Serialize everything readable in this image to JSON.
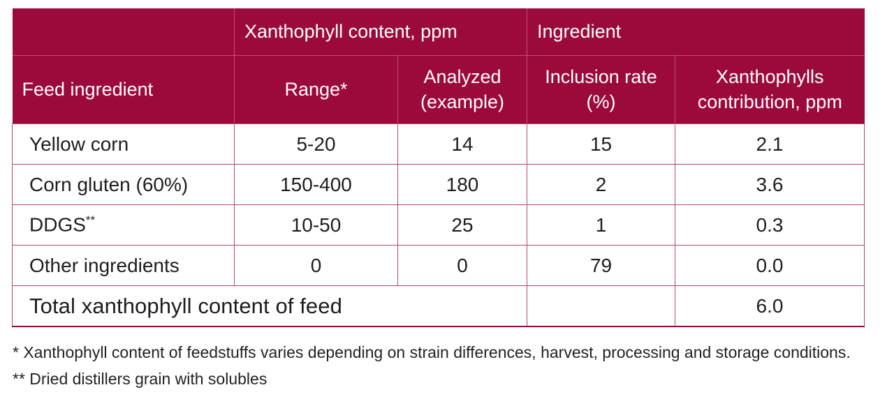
{
  "header": {
    "group_xanthophyll": "Xanthophyll content, ppm",
    "group_ingredient": "Ingredient",
    "col_feed_ingredient": "Feed ingredient",
    "col_range": "Range*",
    "col_analyzed_line1": "Analyzed",
    "col_analyzed_line2": "(example)",
    "col_inclusion_line1": "Inclusion rate",
    "col_inclusion_line2": "(%)",
    "col_contribution_line1": "Xanthophylls",
    "col_contribution_line2": "contribution, ppm"
  },
  "rows": [
    {
      "name": "Yellow corn",
      "range": "5-20",
      "analyzed": "14",
      "inclusion": "15",
      "contribution": "2.1"
    },
    {
      "name": "Corn gluten (60%)",
      "range": "150-400",
      "analyzed": "180",
      "inclusion": "2",
      "contribution": "3.6"
    },
    {
      "name": "DDGS",
      "name_sup": "**",
      "range": "10-50",
      "analyzed": "25",
      "inclusion": "1",
      "contribution": "0.3"
    },
    {
      "name": "Other ingredients",
      "range": "0",
      "analyzed": "0",
      "inclusion": "79",
      "contribution": "0.0"
    }
  ],
  "total": {
    "label": "Total xanthophyll content of feed",
    "contribution": "6.0"
  },
  "footnotes": [
    "* Xanthophyll content of feedstuffs varies depending on strain differences, harvest, processing and storage conditions.",
    "** Dried distillers grain with solubles"
  ],
  "colors": {
    "header_bg": "#9c0a3b",
    "border": "#b5496d"
  }
}
